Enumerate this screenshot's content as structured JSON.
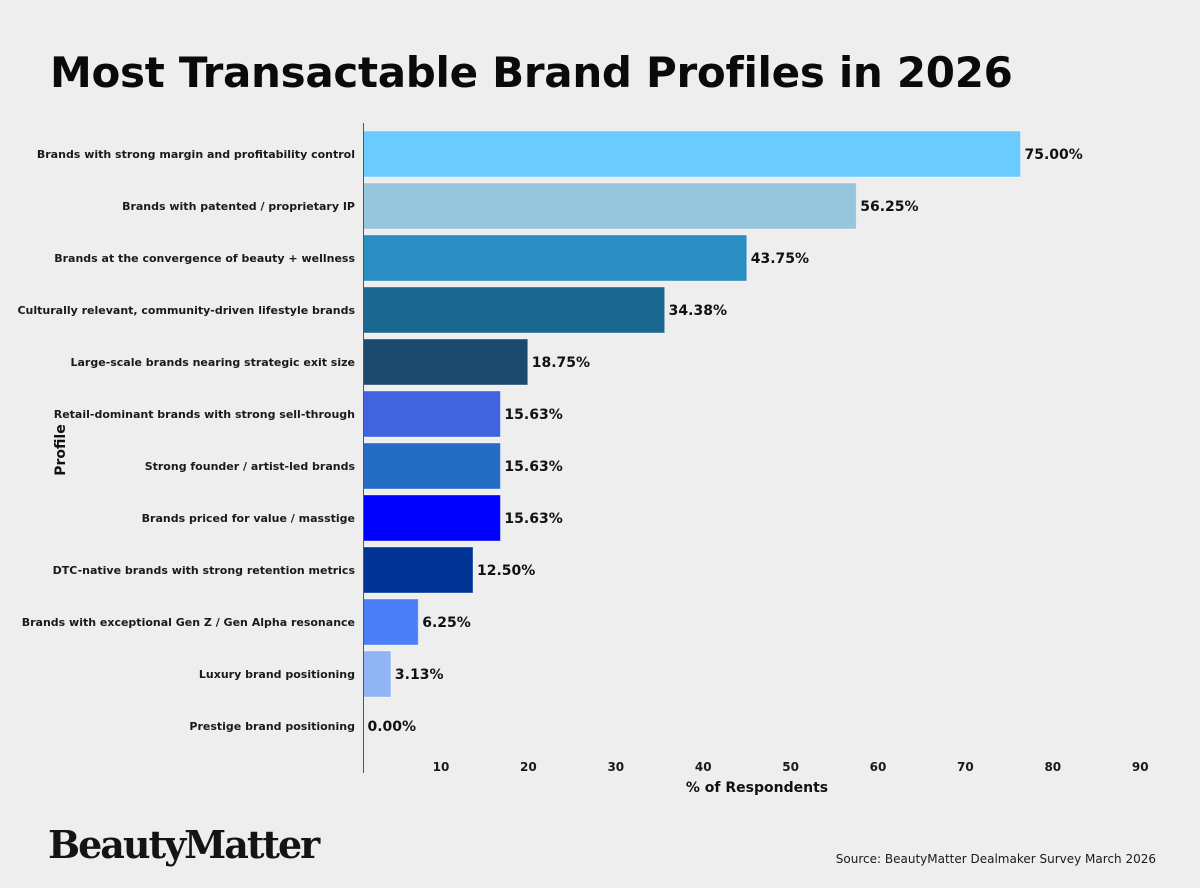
{
  "chart_data": {
    "type": "bar",
    "orientation": "horizontal",
    "title": "Most Transactable Brand Profiles in 2026",
    "xlabel": "% of Respondents",
    "ylabel": "Profile",
    "xlim": [
      0,
      90
    ],
    "xticks": [
      10,
      20,
      30,
      40,
      50,
      60,
      70,
      80,
      90
    ],
    "grid": false,
    "legend": "none",
    "categories": [
      "Brands with strong margin and profitability control",
      "Brands with patented / proprietary IP",
      "Brands at the convergence of beauty + wellness",
      "Culturally relevant, community-driven lifestyle brands",
      "Large-scale brands nearing strategic exit size",
      "Retail-dominant brands with strong sell-through",
      "Strong founder / artist-led brands",
      "Brands priced for value / masstige",
      "DTC-native brands with strong retention metrics",
      "Brands with exceptional Gen Z / Gen Alpha resonance",
      "Luxury brand positioning",
      "Prestige brand positioning"
    ],
    "values": [
      75.0,
      56.25,
      43.75,
      34.38,
      18.75,
      15.63,
      15.63,
      15.63,
      12.5,
      6.25,
      3.13,
      0.0
    ],
    "value_labels": [
      "75.00%",
      "56.25%",
      "43.75%",
      "34.38%",
      "18.75%",
      "15.63%",
      "15.63%",
      "15.63%",
      "12.50%",
      "6.25%",
      "3.13%",
      "0.00%"
    ],
    "colors": [
      "#6BCBFF",
      "#97C5DC",
      "#2A8EC2",
      "#1A6890",
      "#1C4A6E",
      "#4263E0",
      "#256DC4",
      "#0000FF",
      "#003393",
      "#4A7FF7",
      "#91B4F5",
      "#B0C8F0"
    ]
  },
  "footer": {
    "logo": "BeautyMatter",
    "source": "Source: BeautyMatter Dealmaker Survey March 2026"
  },
  "colors": {
    "background": "#EEEEEE",
    "axis": "#555555",
    "text": "#111111"
  }
}
